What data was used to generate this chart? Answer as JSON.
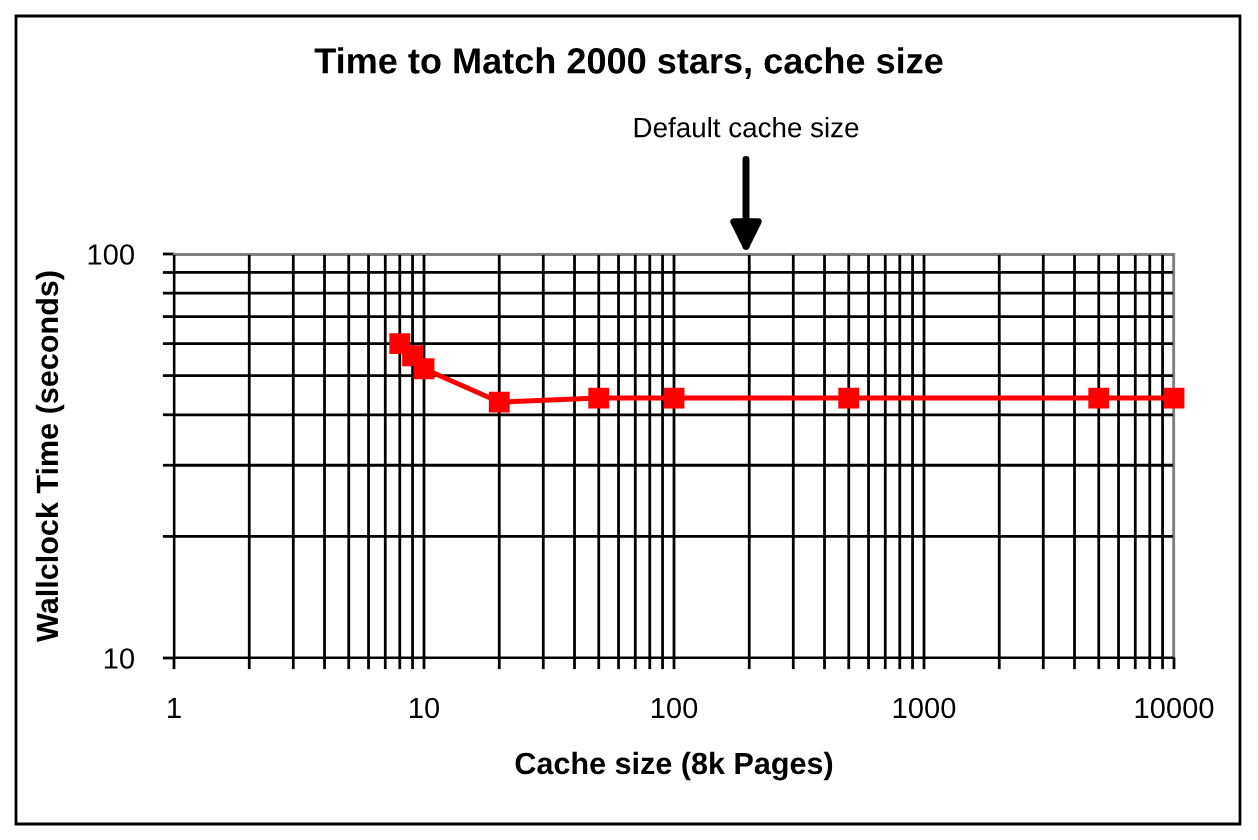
{
  "chart_data": {
    "type": "line",
    "title": "Time to Match 2000 stars, cache size",
    "xlabel": "Cache size (8k Pages)",
    "ylabel": "Wallclock Time (seconds)",
    "x": [
      8,
      9,
      10,
      20,
      50,
      100,
      500,
      5000,
      10000
    ],
    "series": [
      {
        "color": "#ff0000",
        "values": [
          60,
          56,
          52,
          43,
          44,
          44,
          44,
          44,
          44
        ]
      }
    ],
    "log": "xy",
    "xlim": [
      1,
      10000
    ],
    "ylim": [
      10,
      100
    ],
    "xticks": [
      1,
      {
        "value": 2,
        "label": null
      },
      {
        "value": 3,
        "label": null
      },
      {
        "value": 4,
        "label": null
      },
      {
        "value": 5,
        "label": null
      },
      {
        "value": 6,
        "label": null
      },
      {
        "value": 7,
        "label": null
      },
      {
        "value": 8,
        "label": null
      },
      {
        "value": 9,
        "label": null
      },
      10,
      {
        "value": 20,
        "label": null
      },
      {
        "value": 30,
        "label": null
      },
      {
        "value": 40,
        "label": null
      },
      {
        "value": 50,
        "label": null
      },
      {
        "value": 60,
        "label": null
      },
      {
        "value": 70,
        "label": null
      },
      {
        "value": 80,
        "label": null
      },
      {
        "value": 90,
        "label": null
      },
      100,
      {
        "value": 200,
        "label": null
      },
      {
        "value": 300,
        "label": null
      },
      {
        "value": 400,
        "label": null
      },
      {
        "value": 500,
        "label": null
      },
      {
        "value": 600,
        "label": null
      },
      {
        "value": 700,
        "label": null
      },
      {
        "value": 800,
        "label": null
      },
      {
        "value": 900,
        "label": null
      },
      1000,
      {
        "value": 2000,
        "label": null
      },
      {
        "value": 3000,
        "label": null
      },
      {
        "value": 4000,
        "label": null
      },
      {
        "value": 5000,
        "label": null
      },
      {
        "value": 6000,
        "label": null
      },
      {
        "value": 7000,
        "label": null
      },
      {
        "value": 8000,
        "label": null
      },
      {
        "value": 9000,
        "label": null
      },
      10000
    ],
    "yticks": [
      10,
      {
        "value": 20,
        "label": null
      },
      {
        "value": 30,
        "label": null
      },
      {
        "value": 40,
        "label": null
      },
      {
        "value": 50,
        "label": null
      },
      {
        "value": 60,
        "label": null
      },
      {
        "value": 70,
        "label": null
      },
      {
        "value": 80,
        "label": null
      },
      {
        "value": 90,
        "label": null
      },
      100
    ],
    "grid": true,
    "marker": "square",
    "line_style": "solid",
    "annotations": [
      "Default cache size"
    ]
  }
}
